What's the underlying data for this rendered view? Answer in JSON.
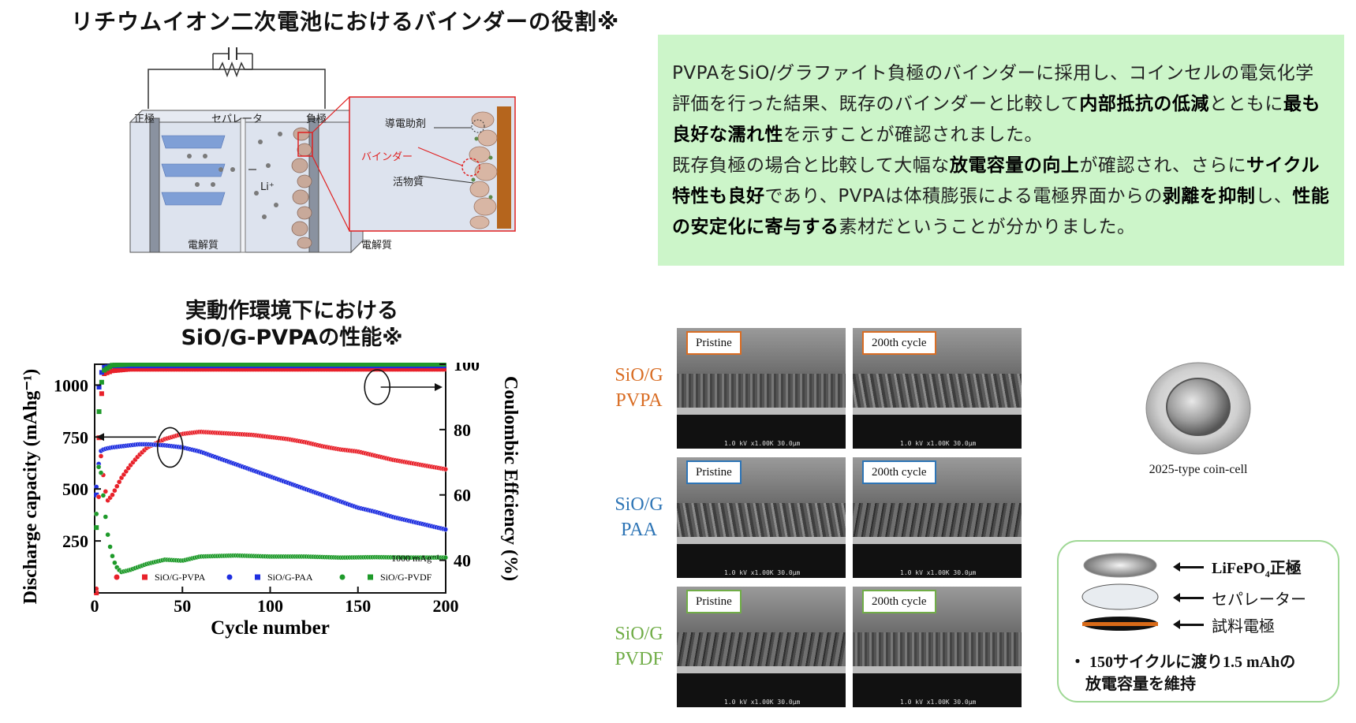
{
  "page": {
    "title": "リチウムイオン二次電池におけるバインダーの役割※"
  },
  "schematic": {
    "cathode": "正極",
    "separator": "セパレータ",
    "anode": "負極",
    "ion": "Li⁺",
    "electrolyte_left": "電解質",
    "electrolyte_right": "電解質",
    "conductive_agent": "導電助剤",
    "binder": "バインダー",
    "active_material": "活物質"
  },
  "info": {
    "p1": [
      {
        "t": "PVPAをSiO/グラファイト負極のバインダーに採用し、コインセルの電気化学評価を行った結果、既存のバインダーと比較して",
        "b": false
      },
      {
        "t": "内部抵抗の低減",
        "b": true
      },
      {
        "t": "とともに",
        "b": false
      },
      {
        "t": "最も良好な濡れ性",
        "b": true
      },
      {
        "t": "を示すことが確認されました。",
        "b": false
      }
    ],
    "p2": [
      {
        "t": "既存負極の場合と比較して大幅な",
        "b": false
      },
      {
        "t": "放電容量の向上",
        "b": true
      },
      {
        "t": "が確認され、さらに",
        "b": false
      },
      {
        "t": "サイクル特性も良好",
        "b": true
      },
      {
        "t": "であり、PVPAは体積膨張による電極界面からの",
        "b": false
      },
      {
        "t": "剥離を抑制",
        "b": true
      },
      {
        "t": "し、",
        "b": false
      },
      {
        "t": "性能の安定化に寄与する",
        "b": true
      },
      {
        "t": "素材だということが分かりました。",
        "b": false
      }
    ]
  },
  "chart_title": {
    "line1": "実動作環境下における",
    "line2": "SiO/G-PVPAの性能※"
  },
  "chart_data": {
    "type": "scatter",
    "xlabel": "Cycle number",
    "ylabel_left": "Discharge capacity (mAhg⁻¹)",
    "ylabel_right": "Coulombic Effciency (%)",
    "xlim": [
      0,
      200
    ],
    "ylim_left": [
      0,
      1100
    ],
    "ylim_right": [
      30,
      100
    ],
    "x_ticks": [
      "0",
      "50",
      "100",
      "150",
      "200"
    ],
    "y_ticks_left": [
      "250",
      "500",
      "750",
      "1000"
    ],
    "y_ticks_right": [
      "40",
      "60",
      "80",
      "100"
    ],
    "annotation": "1000 mAg⁻¹",
    "legend_placement": "bottom",
    "colors": {
      "PVPA": "#e8212a",
      "PAA": "#1f2fe0",
      "PVDF": "#1e9a2a"
    },
    "capacity_series": [
      {
        "name": "SiO/G-PVPA",
        "x": [
          1,
          3,
          5,
          7,
          10,
          15,
          20,
          25,
          30,
          40,
          50,
          60,
          70,
          80,
          90,
          100,
          110,
          120,
          130,
          140,
          150,
          160,
          170,
          180,
          190,
          200
        ],
        "y": [
          20,
          700,
          560,
          440,
          470,
          550,
          610,
          660,
          700,
          740,
          765,
          775,
          770,
          765,
          760,
          750,
          740,
          725,
          705,
          690,
          680,
          660,
          640,
          625,
          610,
          595
        ]
      },
      {
        "name": "SiO/G-PAA",
        "x": [
          1,
          3,
          5,
          7,
          10,
          15,
          20,
          25,
          30,
          40,
          50,
          60,
          70,
          80,
          90,
          100,
          110,
          120,
          130,
          140,
          150,
          160,
          170,
          180,
          190,
          200
        ],
        "y": [
          510,
          680,
          690,
          695,
          700,
          705,
          710,
          715,
          715,
          710,
          700,
          680,
          650,
          620,
          590,
          560,
          530,
          500,
          470,
          440,
          410,
          390,
          365,
          345,
          325,
          305
        ]
      },
      {
        "name": "SiO/G-PVDF",
        "x": [
          1,
          2,
          3,
          4,
          5,
          6,
          7,
          8,
          10,
          12,
          15,
          20,
          25,
          30,
          40,
          50,
          60,
          80,
          100,
          120,
          140,
          160,
          180,
          200
        ],
        "y": [
          380,
          600,
          620,
          550,
          460,
          380,
          310,
          250,
          180,
          130,
          100,
          110,
          125,
          140,
          160,
          155,
          175,
          180,
          175,
          175,
          170,
          172,
          170,
          170
        ]
      }
    ],
    "efficiency_series": [
      {
        "name": "SiO/G-PVPA",
        "x": [
          1,
          2,
          3,
          5,
          10,
          20,
          50,
          100,
          150,
          200
        ],
        "y": [
          30,
          70,
          85,
          97,
          98,
          98.5,
          98.5,
          98.5,
          98.5,
          98.5
        ]
      },
      {
        "name": "SiO/G-PAA",
        "x": [
          1,
          2,
          3,
          5,
          10,
          20,
          50,
          100,
          150,
          200
        ],
        "y": [
          60,
          90,
          96,
          99,
          99.5,
          99.5,
          99.5,
          99.5,
          99.5,
          99.5
        ]
      },
      {
        "name": "SiO/G-PVDF",
        "x": [
          1,
          2,
          3,
          5,
          10,
          20,
          50,
          100,
          150,
          200
        ],
        "y": [
          50,
          80,
          91,
          98,
          99.7,
          100,
          100,
          100,
          100,
          100
        ]
      }
    ]
  },
  "sem": {
    "pristine": "Pristine",
    "cycled": "200th cycle",
    "rows": [
      {
        "label_line1": "SiO/G",
        "label_line2": "PVPA",
        "color": "#d96d24"
      },
      {
        "label_line1": "SiO/G",
        "label_line2": "PAA",
        "color": "#2e75b6"
      },
      {
        "label_line1": "SiO/G",
        "label_line2": "PVDF",
        "color": "#70ad47"
      }
    ],
    "scale_text": "1.0 kV x1.00K 30.0μm"
  },
  "coin": {
    "caption": "2025-type coin-cell"
  },
  "stack": {
    "layer1": "LiFePO",
    "layer1_sub": "4",
    "layer1_suffix": "正極",
    "layer2": "セパレーター",
    "layer3": "試料電極",
    "note_line1": "・ 150サイクルに渡り1.5 mAhの",
    "note_line2": "放電容量を維持"
  }
}
